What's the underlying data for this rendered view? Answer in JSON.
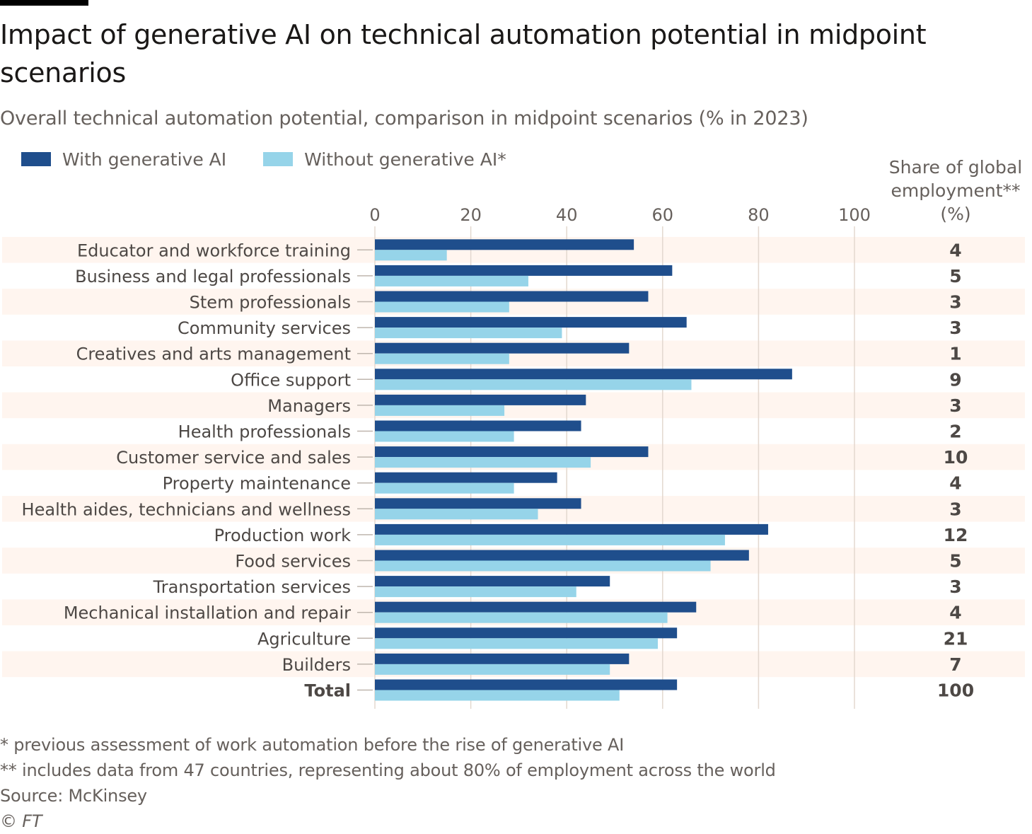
{
  "title": "Impact of generative AI on technical automation potential in midpoint scenarios",
  "subtitle": "Overall technical automation potential, comparison in midpoint scenarios (% in 2023)",
  "legend": {
    "with_label": "With generative AI",
    "without_label": "Without generative AI*"
  },
  "share_header": {
    "line1": "Share of global",
    "line2": "employment**",
    "line3": "(%)"
  },
  "colors": {
    "with": "#1f4e8c",
    "without": "#96d4e9",
    "band": "#fff5ef",
    "grid": "#e3d8cf"
  },
  "chart_data": {
    "type": "bar",
    "orientation": "horizontal",
    "categories": [
      "Educator and workforce training",
      "Business and legal professionals",
      "Stem professionals",
      "Community services",
      "Creatives and arts management",
      "Office support",
      "Managers",
      "Health professionals",
      "Customer service and sales",
      "Property maintenance",
      "Health aides, technicians and wellness",
      "Production work",
      "Food services",
      "Transportation services",
      "Mechanical installation and repair",
      "Agriculture",
      "Builders",
      "Total"
    ],
    "series": [
      {
        "name": "With generative AI",
        "values": [
          54,
          62,
          57,
          65,
          53,
          87,
          44,
          43,
          57,
          38,
          43,
          82,
          78,
          49,
          67,
          63,
          53,
          63
        ]
      },
      {
        "name": "Without generative AI*",
        "values": [
          15,
          32,
          28,
          39,
          28,
          66,
          27,
          29,
          45,
          29,
          34,
          73,
          70,
          42,
          61,
          59,
          49,
          51
        ]
      }
    ],
    "share_of_global_employment": [
      "4",
      "5",
      "3",
      "3",
      "1",
      "9",
      "3",
      "2",
      "10",
      "4",
      "3",
      "12",
      "5",
      "3",
      "4",
      "21",
      "7",
      "100"
    ],
    "xlim": [
      0,
      100
    ],
    "xticks": [
      0,
      20,
      40,
      60,
      80,
      100
    ],
    "grid": true
  },
  "footnotes": [
    "* previous assessment of work automation before the rise of generative AI",
    "** includes data from 47 countries, representing about 80% of employment across the world",
    "Source: McKinsey"
  ],
  "copyright": "© FT"
}
